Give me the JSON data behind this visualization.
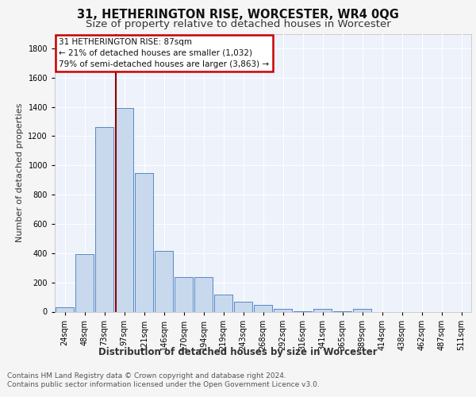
{
  "title": "31, HETHERINGTON RISE, WORCESTER, WR4 0QG",
  "subtitle": "Size of property relative to detached houses in Worcester",
  "xlabel": "Distribution of detached houses by size in Worcester",
  "ylabel": "Number of detached properties",
  "bar_color": "#c8d8ed",
  "bar_edge_color": "#5a8ac6",
  "background_color": "#edf2fb",
  "grid_color": "#ffffff",
  "fig_bg_color": "#f5f5f5",
  "categories": [
    "24sqm",
    "48sqm",
    "73sqm",
    "97sqm",
    "121sqm",
    "146sqm",
    "170sqm",
    "194sqm",
    "219sqm",
    "243sqm",
    "268sqm",
    "292sqm",
    "316sqm",
    "341sqm",
    "365sqm",
    "389sqm",
    "414sqm",
    "438sqm",
    "462sqm",
    "487sqm",
    "511sqm"
  ],
  "values": [
    30,
    395,
    1260,
    1390,
    950,
    415,
    235,
    235,
    115,
    70,
    45,
    18,
    5,
    17,
    5,
    18,
    0,
    0,
    0,
    0,
    0
  ],
  "annotation_line1": "31 HETHERINGTON RISE: 87sqm",
  "annotation_line2": "← 21% of detached houses are smaller (1,032)",
  "annotation_line3": "79% of semi-detached houses are larger (3,863) →",
  "annotation_box_color": "#ffffff",
  "annotation_box_edge_color": "#cc0000",
  "vline_color": "#8b0000",
  "ylim": [
    0,
    1900
  ],
  "yticks": [
    0,
    200,
    400,
    600,
    800,
    1000,
    1200,
    1400,
    1600,
    1800
  ],
  "title_fontsize": 10.5,
  "subtitle_fontsize": 9.5,
  "xlabel_fontsize": 8.5,
  "ylabel_fontsize": 8,
  "tick_fontsize": 7,
  "annotation_fontsize": 7.5,
  "footer_fontsize": 6.5,
  "footer_line1": "Contains HM Land Registry data © Crown copyright and database right 2024.",
  "footer_line2": "Contains public sector information licensed under the Open Government Licence v3.0."
}
